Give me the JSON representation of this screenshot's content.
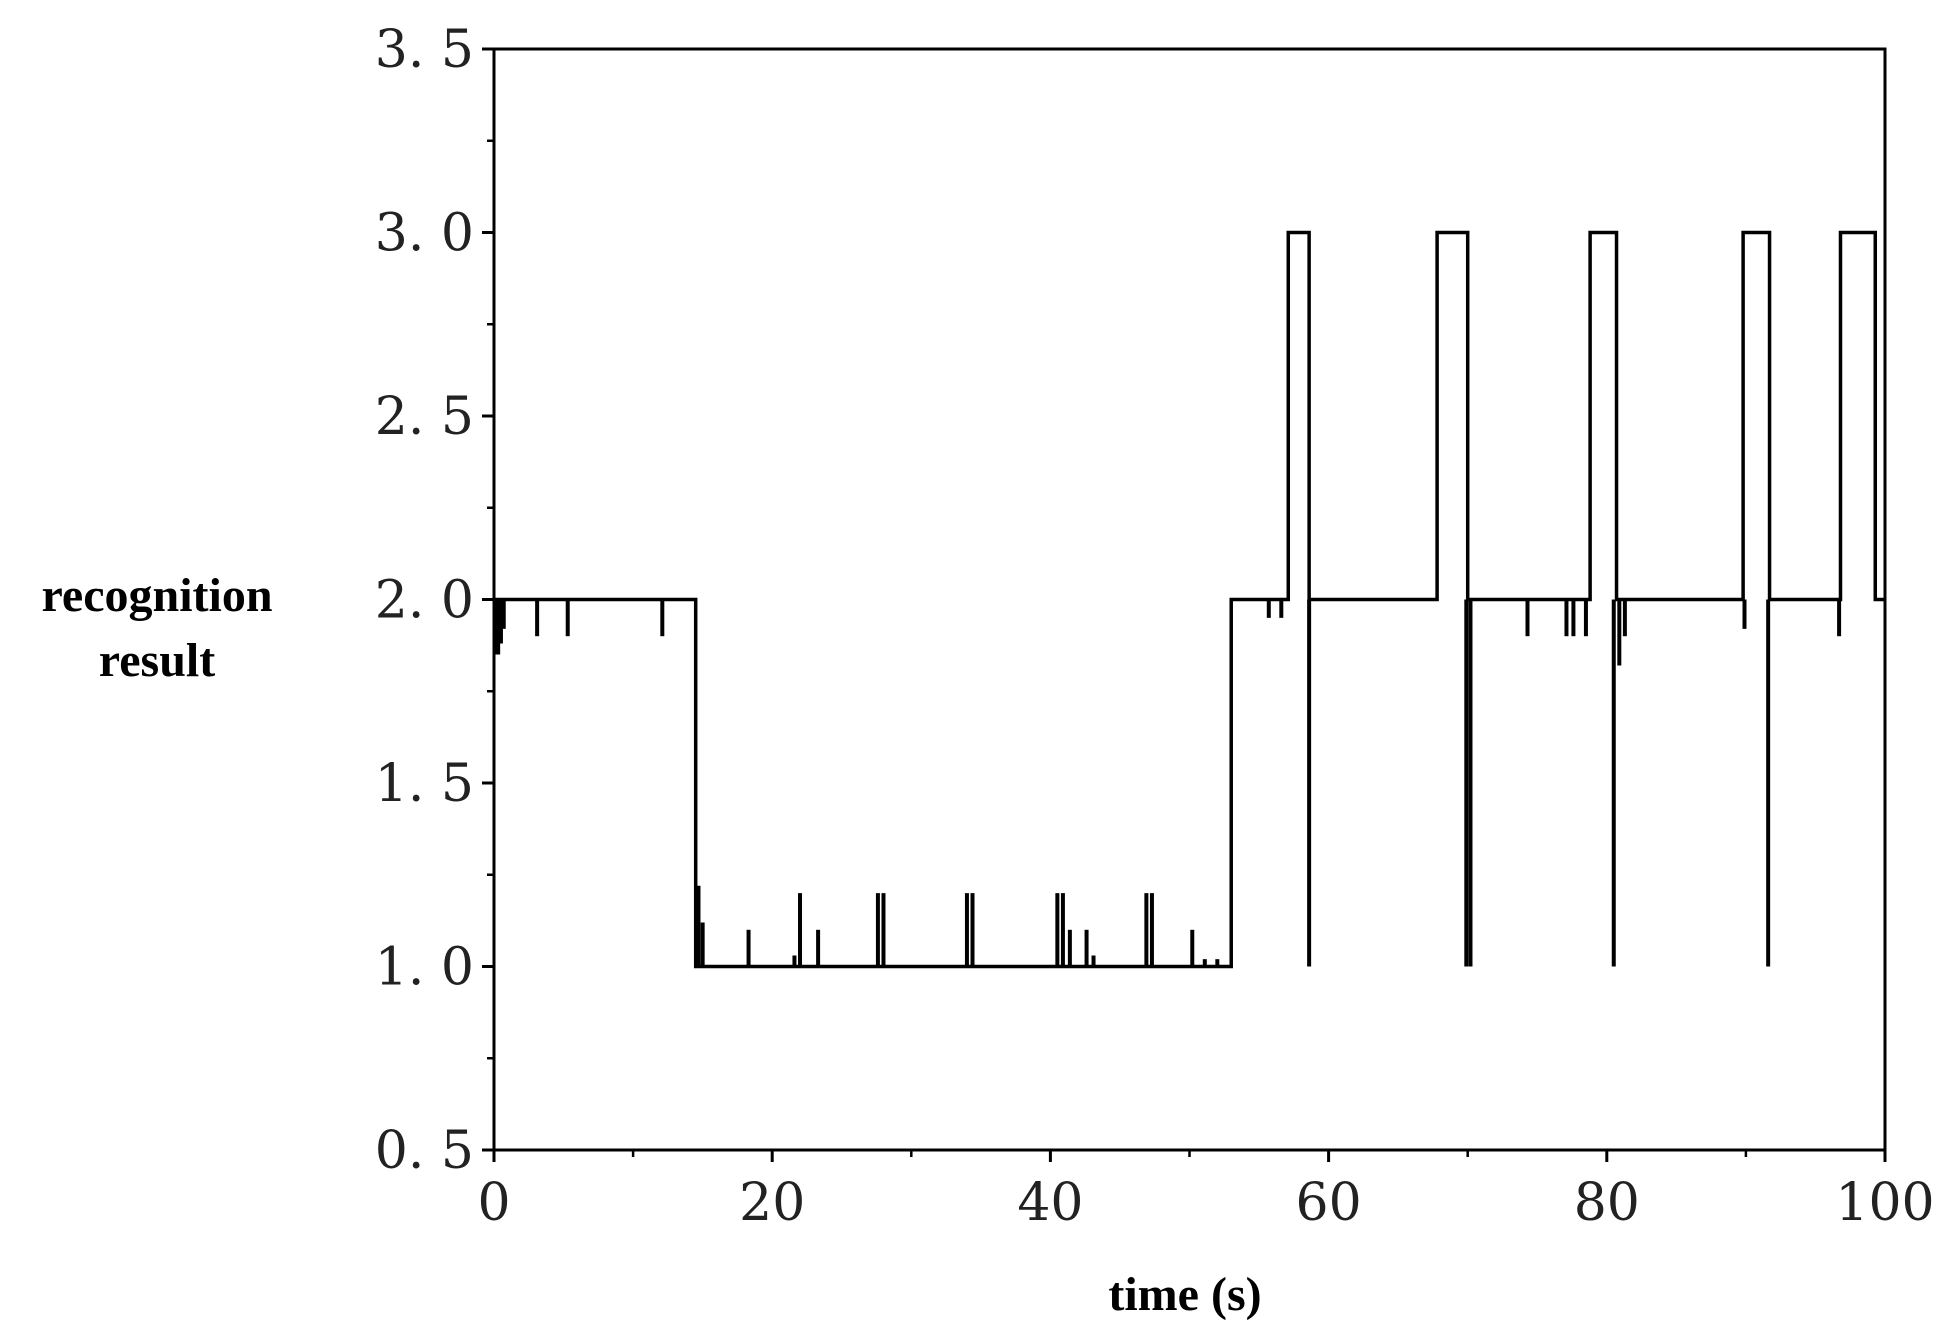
{
  "chart_data": {
    "type": "line",
    "title": "",
    "xlabel": "time (s)",
    "ylabel_lines": [
      "recognition",
      "result"
    ],
    "xlim": [
      0,
      100
    ],
    "ylim": [
      0.5,
      3.5
    ],
    "xticks": [
      0,
      20,
      40,
      60,
      80,
      100
    ],
    "xtick_labels": [
      "0",
      "20",
      "40",
      "60",
      "80",
      "100"
    ],
    "yticks": [
      0.5,
      1.0,
      1.5,
      2.0,
      2.5,
      3.0,
      3.5
    ],
    "ytick_labels": [
      "0. 5",
      "1. 0",
      "1. 5",
      "2. 0",
      "2. 5",
      "3. 0",
      "3. 5"
    ],
    "grid": false,
    "line_color": "#000000",
    "series": [
      {
        "step": true,
        "x": [
          0,
          14.5,
          53.0,
          57.1,
          58.6,
          67.8,
          70.0,
          78.8,
          80.7,
          89.8,
          91.7,
          96.8,
          99.3,
          100
        ],
        "y": [
          2.0,
          1.0,
          2.0,
          3.0,
          2.0,
          3.0,
          2.0,
          3.0,
          2.0,
          3.0,
          2.0,
          3.0,
          2.0,
          2.0
        ]
      }
    ],
    "spikes": [
      {
        "x": 0.1,
        "y": 1.85
      },
      {
        "x": 0.3,
        "y": 1.85
      },
      {
        "x": 0.5,
        "y": 1.88
      },
      {
        "x": 0.7,
        "y": 1.92
      },
      {
        "x": 3.1,
        "y": 1.9
      },
      {
        "x": 5.3,
        "y": 1.9
      },
      {
        "x": 12.1,
        "y": 1.9
      },
      {
        "x": 14.7,
        "y": 1.22
      },
      {
        "x": 15.0,
        "y": 1.12
      },
      {
        "x": 18.3,
        "y": 1.1
      },
      {
        "x": 21.6,
        "y": 1.03
      },
      {
        "x": 22.0,
        "y": 1.2
      },
      {
        "x": 23.3,
        "y": 1.1
      },
      {
        "x": 27.6,
        "y": 1.2
      },
      {
        "x": 28.0,
        "y": 1.2
      },
      {
        "x": 34.0,
        "y": 1.2
      },
      {
        "x": 34.4,
        "y": 1.2
      },
      {
        "x": 40.5,
        "y": 1.2
      },
      {
        "x": 40.9,
        "y": 1.2
      },
      {
        "x": 41.4,
        "y": 1.1
      },
      {
        "x": 42.6,
        "y": 1.1
      },
      {
        "x": 43.1,
        "y": 1.03
      },
      {
        "x": 46.9,
        "y": 1.2
      },
      {
        "x": 47.3,
        "y": 1.2
      },
      {
        "x": 50.2,
        "y": 1.1
      },
      {
        "x": 51.1,
        "y": 1.02
      },
      {
        "x": 52.0,
        "y": 1.02
      },
      {
        "x": 55.7,
        "y": 1.95
      },
      {
        "x": 56.6,
        "y": 1.95
      },
      {
        "x": 58.6,
        "y": 1.0
      },
      {
        "x": 69.9,
        "y": 1.0
      },
      {
        "x": 70.2,
        "y": 1.0
      },
      {
        "x": 74.3,
        "y": 1.9
      },
      {
        "x": 77.1,
        "y": 1.9
      },
      {
        "x": 77.6,
        "y": 1.9
      },
      {
        "x": 78.5,
        "y": 1.9
      },
      {
        "x": 80.5,
        "y": 1.0
      },
      {
        "x": 80.9,
        "y": 1.82
      },
      {
        "x": 81.3,
        "y": 1.9
      },
      {
        "x": 89.9,
        "y": 1.92
      },
      {
        "x": 91.6,
        "y": 1.0
      },
      {
        "x": 96.7,
        "y": 1.9
      }
    ]
  }
}
